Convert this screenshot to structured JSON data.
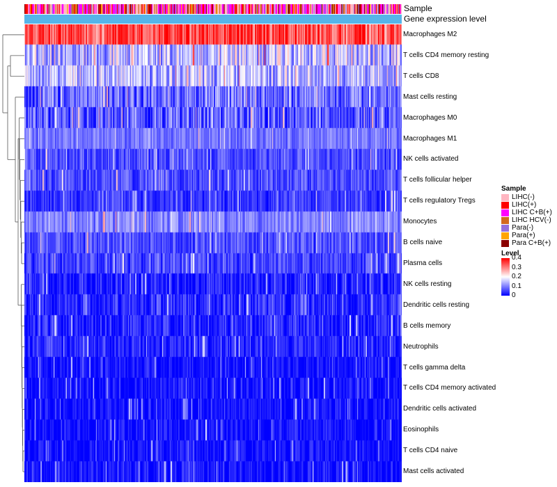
{
  "chart_data": {
    "type": "heatmap",
    "title": "",
    "annotation_rows": [
      "Sample",
      "Gene expression level"
    ],
    "rows": [
      {
        "label": "Macrophages M2",
        "mean": 0.33,
        "spread": 0.09
      },
      {
        "label": "T cells CD4 memory resting",
        "mean": 0.15,
        "spread": 0.1
      },
      {
        "label": "T cells CD8",
        "mean": 0.14,
        "spread": 0.09
      },
      {
        "label": "Mast cells resting",
        "mean": 0.08,
        "spread": 0.08
      },
      {
        "label": "Macrophages M0",
        "mean": 0.07,
        "spread": 0.08
      },
      {
        "label": "Macrophages M1",
        "mean": 0.09,
        "spread": 0.04
      },
      {
        "label": "NK cells activated",
        "mean": 0.06,
        "spread": 0.05
      },
      {
        "label": "T cells follicular helper",
        "mean": 0.06,
        "spread": 0.05
      },
      {
        "label": "T cells regulatory  Tregs",
        "mean": 0.04,
        "spread": 0.04
      },
      {
        "label": "Monocytes",
        "mean": 0.1,
        "spread": 0.05
      },
      {
        "label": "B cells naive",
        "mean": 0.06,
        "spread": 0.05
      },
      {
        "label": "Plasma cells",
        "mean": 0.05,
        "spread": 0.05
      },
      {
        "label": "NK cells resting",
        "mean": 0.02,
        "spread": 0.05
      },
      {
        "label": "Dendritic cells resting",
        "mean": 0.03,
        "spread": 0.05
      },
      {
        "label": "B cells memory",
        "mean": 0.03,
        "spread": 0.05
      },
      {
        "label": "Neutrophils",
        "mean": 0.02,
        "spread": 0.05
      },
      {
        "label": "T cells gamma delta",
        "mean": 0.01,
        "spread": 0.04
      },
      {
        "label": "T cells CD4 memory activated",
        "mean": 0.01,
        "spread": 0.04
      },
      {
        "label": "Dendritic cells activated",
        "mean": 0.01,
        "spread": 0.04
      },
      {
        "label": "Eosinophils",
        "mean": 0.01,
        "spread": 0.04
      },
      {
        "label": "T cells CD4 naive",
        "mean": 0.01,
        "spread": 0.04
      },
      {
        "label": "Mast cells activated",
        "mean": 0.01,
        "spread": 0.05
      }
    ],
    "n_samples": 424,
    "sample_groups": [
      {
        "name": "LIHC(-)",
        "color": "#ffb6c1",
        "weight": 0.3
      },
      {
        "name": "LIHC(+)",
        "color": "#ff0000",
        "weight": 0.15
      },
      {
        "name": "LIHC C+B(+)",
        "color": "#ff00ff",
        "weight": 0.28
      },
      {
        "name": "LIHC HCV(-)",
        "color": "#d2691e",
        "weight": 0.08
      },
      {
        "name": "Para(-)",
        "color": "#9370db",
        "weight": 0.07
      },
      {
        "name": "Para(+)",
        "color": "#ffa500",
        "weight": 0.05
      },
      {
        "name": "Para C+B(+)",
        "color": "#8b0000",
        "weight": 0.07
      }
    ],
    "gene_expression_level_color": "#56b4e9",
    "color_scale": {
      "min": 0,
      "max": 0.4,
      "stops": [
        {
          "value": 0,
          "color": "#0000ff"
        },
        {
          "value": 0.2,
          "color": "#ffffff"
        },
        {
          "value": 0.4,
          "color": "#ff0000"
        }
      ],
      "ticks": [
        "0.4",
        "0.3",
        "0.2",
        "0.1",
        "0"
      ]
    }
  },
  "legend": {
    "sample_title": "Sample",
    "level_title": "Level"
  }
}
